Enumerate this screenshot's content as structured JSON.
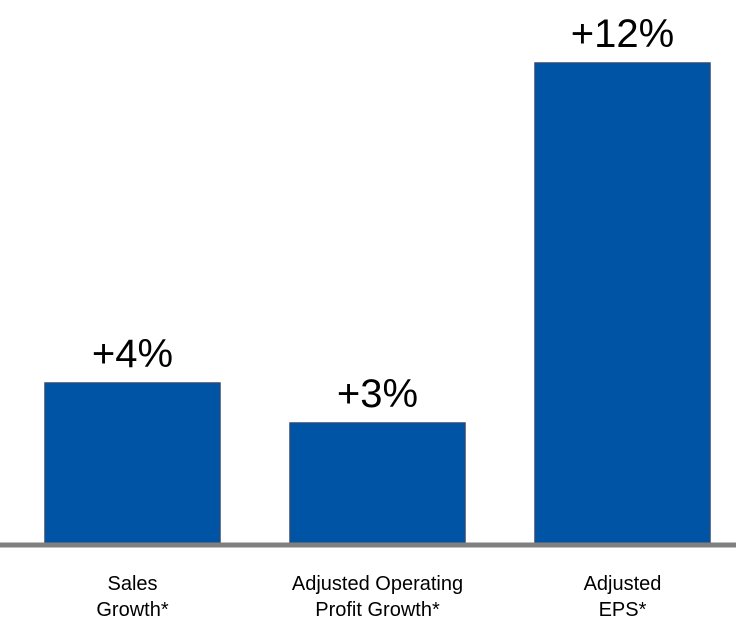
{
  "chart_data": {
    "type": "bar",
    "categories": [
      [
        "Sales",
        "Growth*"
      ],
      [
        "Adjusted Operating",
        "Profit Growth*"
      ],
      [
        "Adjusted",
        "EPS*"
      ]
    ],
    "values": [
      4,
      3,
      12
    ],
    "value_labels": [
      "+4%",
      "+3%",
      "+12%"
    ],
    "color": "#0054a6"
  }
}
